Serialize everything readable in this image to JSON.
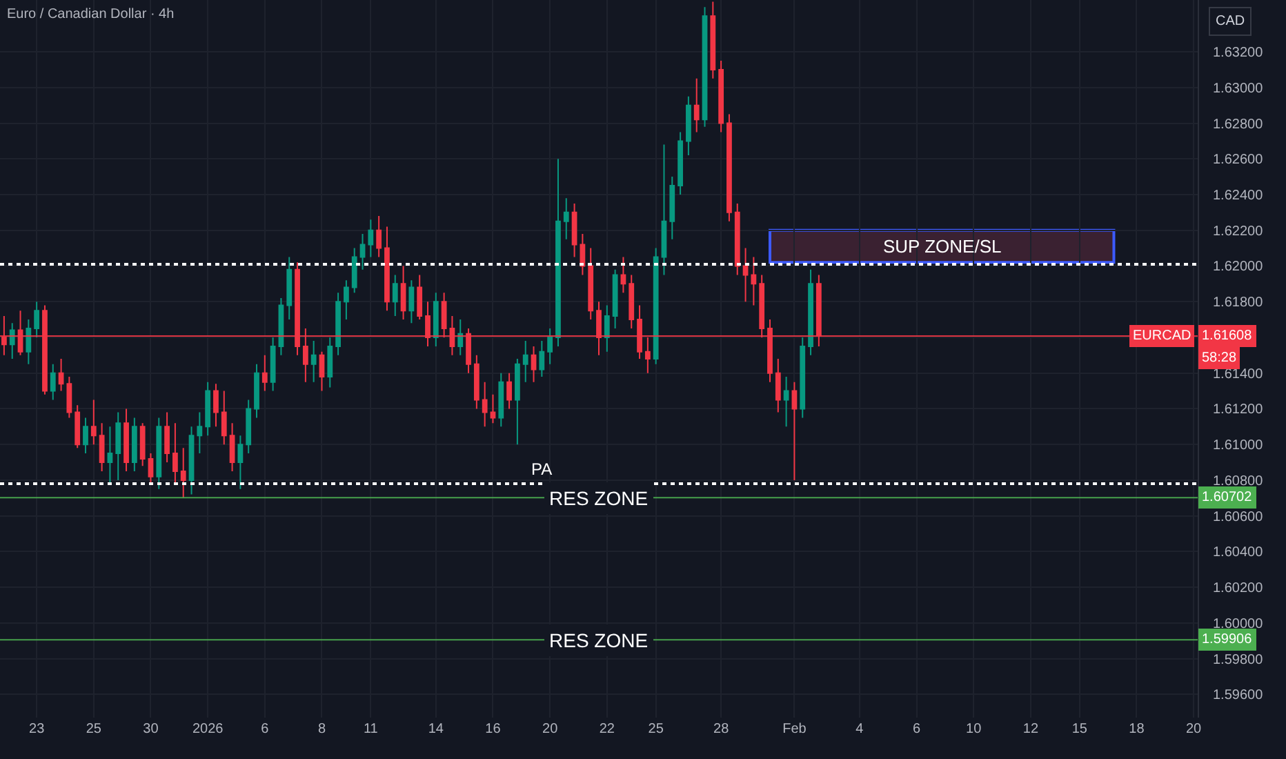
{
  "chart_data": {
    "type": "candlestick",
    "title": "Euro / Canadian Dollar · 4h",
    "ylabel": "CAD",
    "categories": [
      null,
      null,
      null,
      null,
      "23",
      null,
      null,
      null,
      null,
      null,
      null,
      "25",
      null,
      null,
      null,
      null,
      null,
      null,
      "30",
      null,
      null,
      null,
      null,
      null,
      null,
      "2026",
      null,
      null,
      null,
      null,
      null,
      null,
      "6",
      null,
      null,
      null,
      null,
      null,
      null,
      "8",
      null,
      null,
      null,
      null,
      null,
      "11",
      null,
      null,
      null,
      null,
      null,
      null,
      null,
      "14",
      null,
      null,
      null,
      null,
      null,
      null,
      "16",
      null,
      null,
      null,
      null,
      null,
      null,
      "20",
      null,
      null,
      null,
      null,
      null,
      null,
      "22",
      null,
      null,
      null,
      null,
      null,
      "25",
      null,
      null,
      null,
      null,
      null,
      null,
      null,
      "28",
      null,
      null,
      null,
      null,
      null,
      null,
      null,
      null,
      "Feb",
      null,
      null,
      null,
      null,
      null,
      null,
      null,
      "4",
      null,
      null,
      null,
      null,
      null,
      null,
      "6",
      null,
      null,
      null,
      null,
      null,
      null,
      "10",
      null,
      null,
      null,
      null,
      null,
      null,
      "12",
      null,
      null,
      null,
      null,
      null,
      "15",
      null,
      null,
      null,
      null,
      null,
      null,
      "18",
      null,
      null,
      null,
      null,
      null,
      null,
      "20"
    ],
    "ohlc": [
      [
        1.616,
        1.6172,
        1.615,
        1.6156
      ],
      [
        1.6156,
        1.6168,
        1.6148,
        1.6164
      ],
      [
        1.6164,
        1.6175,
        1.615,
        1.6152
      ],
      [
        1.6152,
        1.617,
        1.6145,
        1.6165
      ],
      [
        1.6165,
        1.618,
        1.616,
        1.6175
      ],
      [
        1.6175,
        1.6178,
        1.6128,
        1.613
      ],
      [
        1.613,
        1.6145,
        1.6125,
        1.614
      ],
      [
        1.614,
        1.6148,
        1.613,
        1.6134
      ],
      [
        1.6134,
        1.6138,
        1.6115,
        1.6118
      ],
      [
        1.6118,
        1.6122,
        1.6098,
        1.61
      ],
      [
        1.61,
        1.6115,
        1.6095,
        1.611
      ],
      [
        1.611,
        1.6125,
        1.61,
        1.6105
      ],
      [
        1.6105,
        1.6112,
        1.6085,
        1.609
      ],
      [
        1.609,
        1.611,
        1.6078,
        1.6095
      ],
      [
        1.6095,
        1.6118,
        1.608,
        1.6112
      ],
      [
        1.6112,
        1.612,
        1.6085,
        1.609
      ],
      [
        1.609,
        1.6115,
        1.6085,
        1.611
      ],
      [
        1.611,
        1.6112,
        1.6088,
        1.6092
      ],
      [
        1.6092,
        1.6095,
        1.6078,
        1.6082
      ],
      [
        1.6082,
        1.6115,
        1.6075,
        1.611
      ],
      [
        1.611,
        1.6118,
        1.609,
        1.6095
      ],
      [
        1.6095,
        1.6112,
        1.6078,
        1.6085
      ],
      [
        1.6085,
        1.6098,
        1.607,
        1.608
      ],
      [
        1.608,
        1.611,
        1.6072,
        1.6105
      ],
      [
        1.6105,
        1.6118,
        1.6095,
        1.611
      ],
      [
        1.611,
        1.6135,
        1.6105,
        1.613
      ],
      [
        1.613,
        1.6134,
        1.611,
        1.6118
      ],
      [
        1.6118,
        1.613,
        1.61,
        1.6105
      ],
      [
        1.6105,
        1.6112,
        1.6085,
        1.609
      ],
      [
        1.609,
        1.6105,
        1.6075,
        1.61
      ],
      [
        1.61,
        1.6125,
        1.6095,
        1.612
      ],
      [
        1.612,
        1.6145,
        1.6115,
        1.614
      ],
      [
        1.614,
        1.615,
        1.613,
        1.6135
      ],
      [
        1.6135,
        1.616,
        1.613,
        1.6155
      ],
      [
        1.6155,
        1.6182,
        1.615,
        1.6178
      ],
      [
        1.6178,
        1.6205,
        1.617,
        1.6198
      ],
      [
        1.6198,
        1.6202,
        1.615,
        1.6155
      ],
      [
        1.6155,
        1.6165,
        1.6135,
        1.6145
      ],
      [
        1.6145,
        1.6158,
        1.6135,
        1.615
      ],
      [
        1.615,
        1.6152,
        1.613,
        1.6138
      ],
      [
        1.6138,
        1.616,
        1.6132,
        1.6155
      ],
      [
        1.6155,
        1.6185,
        1.615,
        1.618
      ],
      [
        1.618,
        1.6192,
        1.617,
        1.6188
      ],
      [
        1.6188,
        1.621,
        1.6185,
        1.6205
      ],
      [
        1.6205,
        1.6218,
        1.6198,
        1.6212
      ],
      [
        1.6212,
        1.6226,
        1.6205,
        1.622
      ],
      [
        1.622,
        1.6228,
        1.6205,
        1.621
      ],
      [
        1.621,
        1.6222,
        1.6175,
        1.618
      ],
      [
        1.618,
        1.6195,
        1.6172,
        1.619
      ],
      [
        1.619,
        1.62,
        1.617,
        1.6175
      ],
      [
        1.6175,
        1.6192,
        1.6168,
        1.6188
      ],
      [
        1.6188,
        1.6195,
        1.617,
        1.6172
      ],
      [
        1.6172,
        1.618,
        1.6155,
        1.616
      ],
      [
        1.616,
        1.6185,
        1.6155,
        1.618
      ],
      [
        1.618,
        1.6185,
        1.616,
        1.6165
      ],
      [
        1.6165,
        1.6172,
        1.615,
        1.6155
      ],
      [
        1.6155,
        1.617,
        1.615,
        1.6162
      ],
      [
        1.6162,
        1.6165,
        1.614,
        1.6145
      ],
      [
        1.6145,
        1.615,
        1.612,
        1.6125
      ],
      [
        1.6125,
        1.6135,
        1.611,
        1.6118
      ],
      [
        1.6118,
        1.6128,
        1.6112,
        1.6115
      ],
      [
        1.6115,
        1.614,
        1.611,
        1.6135
      ],
      [
        1.6135,
        1.614,
        1.612,
        1.6125
      ],
      [
        1.6125,
        1.6148,
        1.61,
        1.6145
      ],
      [
        1.6145,
        1.6158,
        1.6135,
        1.615
      ],
      [
        1.615,
        1.6155,
        1.6135,
        1.6142
      ],
      [
        1.6142,
        1.6158,
        1.6138,
        1.6152
      ],
      [
        1.6152,
        1.6165,
        1.6145,
        1.616
      ],
      [
        1.616,
        1.626,
        1.6155,
        1.6225
      ],
      [
        1.6225,
        1.6238,
        1.6215,
        1.623
      ],
      [
        1.623,
        1.6235,
        1.6205,
        1.6212
      ],
      [
        1.6212,
        1.6218,
        1.6195,
        1.62
      ],
      [
        1.62,
        1.621,
        1.617,
        1.6175
      ],
      [
        1.6175,
        1.618,
        1.615,
        1.616
      ],
      [
        1.616,
        1.6178,
        1.6152,
        1.6172
      ],
      [
        1.6172,
        1.6198,
        1.6165,
        1.6195
      ],
      [
        1.6195,
        1.6205,
        1.6185,
        1.619
      ],
      [
        1.619,
        1.6195,
        1.6165,
        1.617
      ],
      [
        1.617,
        1.6178,
        1.6148,
        1.6152
      ],
      [
        1.6152,
        1.616,
        1.614,
        1.6148
      ],
      [
        1.6148,
        1.621,
        1.6145,
        1.6205
      ],
      [
        1.6205,
        1.6268,
        1.6195,
        1.6225
      ],
      [
        1.6225,
        1.625,
        1.6215,
        1.6245
      ],
      [
        1.6245,
        1.6275,
        1.624,
        1.627
      ],
      [
        1.627,
        1.6295,
        1.6262,
        1.629
      ],
      [
        1.629,
        1.6305,
        1.6275,
        1.6282
      ],
      [
        1.6282,
        1.6345,
        1.6278,
        1.634
      ],
      [
        1.634,
        1.6348,
        1.6305,
        1.631
      ],
      [
        1.631,
        1.6315,
        1.6275,
        1.628
      ],
      [
        1.628,
        1.6285,
        1.6225,
        1.623
      ],
      [
        1.623,
        1.6235,
        1.6195,
        1.62
      ],
      [
        1.62,
        1.621,
        1.618,
        1.6195
      ],
      [
        1.6195,
        1.6205,
        1.6178,
        1.619
      ],
      [
        1.619,
        1.6195,
        1.616,
        1.6165
      ],
      [
        1.6165,
        1.617,
        1.6135,
        1.614
      ],
      [
        1.614,
        1.6148,
        1.6118,
        1.6125
      ],
      [
        1.6125,
        1.6138,
        1.611,
        1.613
      ],
      [
        1.613,
        1.6135,
        1.608,
        1.612
      ],
      [
        1.612,
        1.616,
        1.6115,
        1.6155
      ],
      [
        1.6155,
        1.6198,
        1.615,
        1.619
      ],
      [
        1.619,
        1.6195,
        1.6155,
        1.61608
      ],
      null,
      null,
      null,
      null,
      null,
      null,
      null,
      null,
      null,
      null,
      null,
      null,
      null,
      null,
      null,
      null,
      null,
      null,
      null,
      null,
      null,
      null,
      null,
      null,
      null,
      null,
      null,
      null,
      null,
      null,
      null,
      null,
      null,
      null,
      null,
      null,
      null,
      null,
      null,
      null,
      null,
      null,
      null,
      null,
      null,
      null
    ],
    "colors": [
      "#f23645",
      "#089981",
      "#f23645",
      "#089981",
      "#089981",
      "#f23645",
      "#089981",
      "#f23645",
      "#f23645",
      "#f23645",
      "#089981",
      "#f23645",
      "#f23645",
      "#089981",
      "#089981",
      "#f23645",
      "#089981",
      "#f23645",
      "#f23645",
      "#089981",
      "#f23645",
      "#f23645",
      "#f23645",
      "#089981",
      "#089981",
      "#089981",
      "#f23645",
      "#f23645",
      "#f23645",
      "#089981",
      "#089981",
      "#089981",
      "#f23645",
      "#089981",
      "#089981",
      "#089981",
      "#f23645",
      "#f23645",
      "#089981",
      "#f23645",
      "#089981",
      "#089981",
      "#089981",
      "#089981",
      "#089981",
      "#089981",
      "#f23645",
      "#f23645",
      "#089981",
      "#f23645",
      "#089981",
      "#f23645",
      "#f23645",
      "#089981",
      "#f23645",
      "#f23645",
      "#089981",
      "#f23645",
      "#f23645",
      "#f23645",
      "#f23645",
      "#089981",
      "#f23645",
      "#089981",
      "#089981",
      "#f23645",
      "#089981",
      "#089981",
      "#089981",
      "#089981",
      "#f23645",
      "#f23645",
      "#f23645",
      "#f23645",
      "#089981",
      "#089981",
      "#f23645",
      "#f23645",
      "#f23645",
      "#f23645",
      "#089981",
      "#089981",
      "#089981",
      "#089981",
      "#089981",
      "#f23645",
      "#089981",
      "#f23645",
      "#f23645",
      "#f23645",
      "#f23645",
      "#f23645",
      "#f23645",
      "#f23645",
      "#f23645",
      "#f23645",
      "#089981",
      "#f23645",
      "#089981",
      "#089981",
      "#f23645",
      null,
      null,
      null,
      null,
      null,
      null,
      null,
      null,
      null,
      null,
      null,
      null,
      null,
      null,
      null,
      null,
      null,
      null,
      null,
      null,
      null,
      null,
      null,
      null,
      null,
      null,
      null,
      null,
      null,
      null,
      null,
      null,
      null,
      null,
      null,
      null,
      null,
      null,
      null,
      null,
      null,
      null,
      null,
      null,
      null,
      null
    ],
    "ylim": [
      1.5947,
      1.6349
    ],
    "yticks": [
      {
        "value": 1.596,
        "label": "1.59600"
      },
      {
        "value": 1.598,
        "label": "1.59800"
      },
      {
        "value": 1.6,
        "label": "1.60000"
      },
      {
        "value": 1.602,
        "label": "1.60200"
      },
      {
        "value": 1.604,
        "label": "1.60400"
      },
      {
        "value": 1.606,
        "label": "1.60600"
      },
      {
        "value": 1.608,
        "label": "1.60800"
      },
      {
        "value": 1.61,
        "label": "1.61000"
      },
      {
        "value": 1.612,
        "label": "1.61200"
      },
      {
        "value": 1.614,
        "label": "1.61400"
      },
      {
        "value": 1.616,
        "label": null
      },
      {
        "value": 1.618,
        "label": "1.61800"
      },
      {
        "value": 1.62,
        "label": "1.62000"
      },
      {
        "value": 1.622,
        "label": "1.62200"
      },
      {
        "value": 1.624,
        "label": "1.62400"
      },
      {
        "value": 1.626,
        "label": "1.62600"
      },
      {
        "value": 1.628,
        "label": "1.62800"
      },
      {
        "value": 1.63,
        "label": "1.63000"
      },
      {
        "value": 1.632,
        "label": "1.63200"
      }
    ],
    "grid": true,
    "ref_lines": [
      {
        "axis": "y",
        "value": 1.6201,
        "color": "#ffffff",
        "line_style": "dotted"
      },
      {
        "axis": "y",
        "value": 1.6078,
        "label": "PA",
        "color": "#ffffff",
        "line_style": "dotted"
      },
      {
        "axis": "y",
        "value": 1.60702,
        "label": "RES ZONE",
        "color": "#4caf50",
        "line_style": "solid"
      },
      {
        "axis": "y",
        "value": 1.59906,
        "label": "RES ZONE",
        "color": "#4caf50",
        "line_style": "solid"
      },
      {
        "axis": "y",
        "value": 1.61608,
        "label": "EURCAD",
        "color": "#f23645",
        "line_style": "solid"
      }
    ],
    "bands": [
      {
        "axis": "y",
        "from": 1.6202,
        "to": 1.622,
        "label": "SUP ZONE/SL",
        "color": "#3a2131"
      }
    ],
    "annotations": [
      "1.60702",
      "1.59906",
      "1.61608",
      "58:28"
    ]
  }
}
